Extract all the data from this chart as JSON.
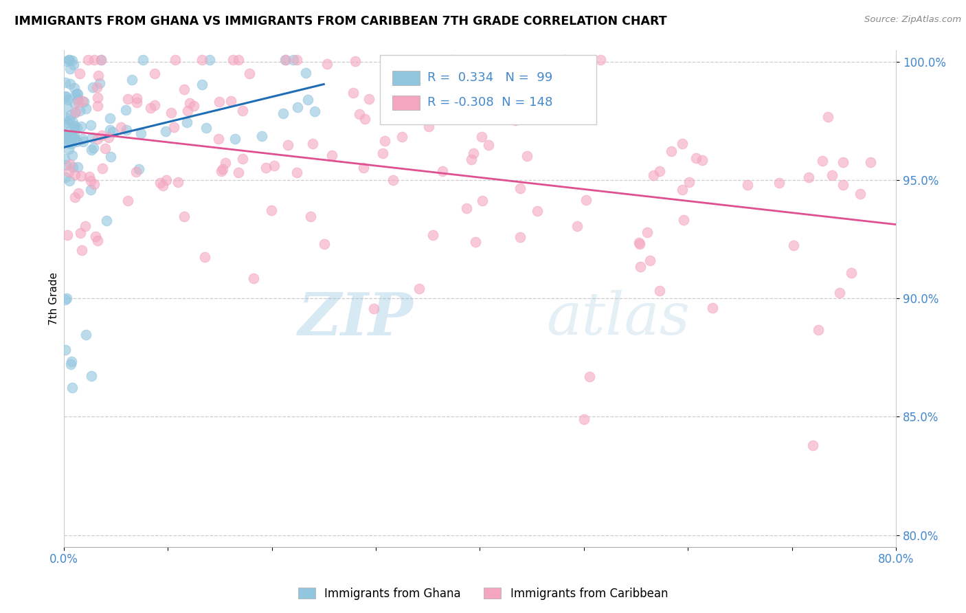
{
  "title": "IMMIGRANTS FROM GHANA VS IMMIGRANTS FROM CARIBBEAN 7TH GRADE CORRELATION CHART",
  "source": "Source: ZipAtlas.com",
  "ylabel": "7th Grade",
  "xlim": [
    0.0,
    0.8
  ],
  "ylim": [
    0.795,
    1.005
  ],
  "ghana_R": 0.334,
  "ghana_N": 99,
  "carib_R": -0.308,
  "carib_N": 148,
  "ghana_color": "#92c5de",
  "carib_color": "#f4a6c0",
  "ghana_line_color": "#1f6db5",
  "carib_line_color": "#e05090",
  "watermark_zip": "ZIP",
  "watermark_atlas": "atlas",
  "legend_label_ghana": "Immigrants from Ghana",
  "legend_label_carib": "Immigrants from Caribbean",
  "tick_color": "#4488cc"
}
